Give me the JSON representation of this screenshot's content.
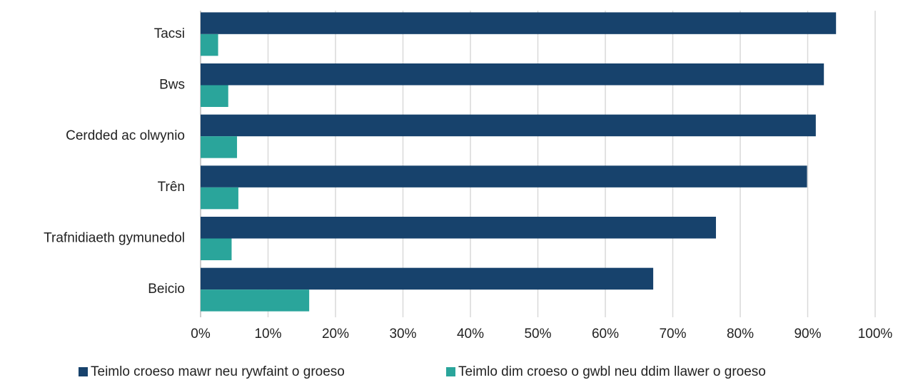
{
  "chart_data": {
    "type": "bar",
    "orientation": "horizontal",
    "categories": [
      "Tacsi",
      "Bws",
      "Cerdded ac olwynio",
      "Trên",
      "Trafnidiaeth gymunedol",
      "Beicio"
    ],
    "series": [
      {
        "name": "Teimlo croeso mawr neu rywfaint o groeso",
        "color": "#17426c",
        "values": [
          94.2,
          92.4,
          91.2,
          89.9,
          76.4,
          67.1
        ]
      },
      {
        "name": "Teimlo dim croeso o gwbl neu ddim llawer o groeso",
        "color": "#2aa59b",
        "values": [
          2.6,
          4.1,
          5.4,
          5.6,
          4.6,
          16.1
        ]
      }
    ],
    "xlim": [
      0,
      100
    ],
    "xticks": [
      {
        "value": 0,
        "label": "0%"
      },
      {
        "value": 10,
        "label": "10%"
      },
      {
        "value": 20,
        "label": "20%"
      },
      {
        "value": 30,
        "label": "30%"
      },
      {
        "value": 40,
        "label": "40%"
      },
      {
        "value": 50,
        "label": "50%"
      },
      {
        "value": 60,
        "label": "60%"
      },
      {
        "value": 70,
        "label": "70%"
      },
      {
        "value": 80,
        "label": "80%"
      },
      {
        "value": 90,
        "label": "90%"
      },
      {
        "value": 100,
        "label": "100%"
      }
    ],
    "grid": true,
    "legend": "bottom"
  }
}
